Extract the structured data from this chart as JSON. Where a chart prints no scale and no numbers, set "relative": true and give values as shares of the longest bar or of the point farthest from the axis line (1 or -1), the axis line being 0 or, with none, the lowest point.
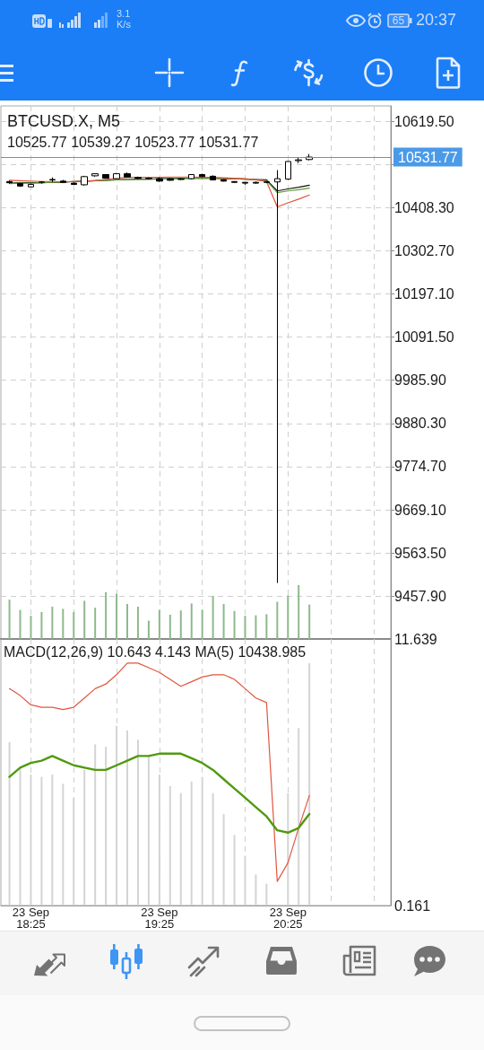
{
  "chart_data": [
    {
      "type": "candlestick",
      "title": "BTCUSD.X, M5",
      "subtitle": "10525.77 10539.27 10523.77 10531.77",
      "x": [
        "--09-23T18:15",
        "--09-23T18:20",
        "--09-23T18:25",
        "--09-23T18:30",
        "--09-23T18:35",
        "--09-23T18:40",
        "--09-23T18:45",
        "--09-23T18:50",
        "--09-23T18:55",
        "--09-23T19:00",
        "--09-23T19:05",
        "--09-23T19:10",
        "--09-23T19:15",
        "--09-23T19:20",
        "--09-23T19:25",
        "--09-23T19:30",
        "--09-23T19:35",
        "--09-23T19:40",
        "--09-23T19:45",
        "--09-23T19:50",
        "--09-23T19:55",
        "--09-23T20:00",
        "--09-23T20:05",
        "--09-23T20:10",
        "--09-23T20:15",
        "--09-23T20:20",
        "--09-23T20:25",
        "--09-23T20:30",
        "--09-23T20:35"
      ],
      "ohlc": [
        [
          10472,
          10474,
          10467,
          10469
        ],
        [
          10467,
          10468,
          10459,
          10461
        ],
        [
          10459,
          10467,
          10458,
          10465
        ],
        [
          10470,
          10473,
          10467,
          10471
        ],
        [
          10476,
          10482,
          10471,
          10477
        ],
        [
          10473,
          10476,
          10469,
          10470
        ],
        [
          10468,
          10470,
          10464,
          10465
        ],
        [
          10464,
          10486,
          10462,
          10484
        ],
        [
          10486,
          10492,
          10484,
          10491
        ],
        [
          10489,
          10490,
          10479,
          10480
        ],
        [
          10479,
          10493,
          10478,
          10491
        ],
        [
          10491,
          10494,
          10482,
          10483
        ],
        [
          10482,
          10484,
          10478,
          10480
        ],
        [
          10480,
          10482,
          10477,
          10479
        ],
        [
          10479,
          10482,
          10471,
          10473
        ],
        [
          10479,
          10481,
          10474,
          10475
        ],
        [
          10478,
          10480,
          10476,
          10477
        ],
        [
          10479,
          10490,
          10477,
          10489
        ],
        [
          10489,
          10491,
          10483,
          10484
        ],
        [
          10485,
          10487,
          10475,
          10476
        ],
        [
          10476,
          10477,
          10472,
          10473
        ],
        [
          10472,
          10473,
          10469,
          10470
        ],
        [
          10470,
          10471,
          10464,
          10468
        ],
        [
          10470,
          10472,
          10467,
          10468
        ],
        [
          10471,
          10473,
          10468,
          10470
        ],
        [
          10471,
          10500,
          9490,
          10479
        ],
        [
          10478,
          10522,
          10476,
          10521
        ],
        [
          10523,
          10532,
          10517,
          10525
        ],
        [
          10525.77,
          10539.27,
          10523.77,
          10531.77
        ]
      ],
      "color": "#000000",
      "series": [
        {
          "type": "line",
          "color": "#111111",
          "values": [
            10468,
            10469,
            10469,
            10469,
            10470,
            10470,
            10472,
            10473,
            10474,
            10475,
            10476,
            10477,
            10478,
            10478,
            10479,
            10479,
            10480,
            10480,
            10480,
            10480,
            10479,
            10479,
            10478,
            10477,
            10476,
            10449,
            10454,
            10458,
            10463
          ]
        },
        {
          "type": "line",
          "color": "#5f9e35",
          "values": [
            10467,
            10468,
            10468,
            10469,
            10470,
            10471,
            10472,
            10473,
            10474,
            10475,
            10476,
            10477,
            10477,
            10478,
            10478,
            10479,
            10479,
            10480,
            10480,
            10480,
            10480,
            10479,
            10478,
            10476,
            10474,
            10445,
            10449,
            10452,
            10456
          ]
        },
        {
          "type": "line",
          "color": "#e0533c",
          "values": [
            10475,
            10474,
            10473,
            10472,
            10472,
            10471,
            10472,
            10473,
            10474,
            10477,
            10480,
            10482,
            10482,
            10482,
            10482,
            10483,
            10483,
            10483,
            10482,
            10482,
            10481,
            10480,
            10479,
            10476,
            10472,
            10410,
            10420,
            10429,
            10439
          ]
        }
      ],
      "xlim": [
        "--09-23T18:11",
        "--09-23T21:13"
      ],
      "xticks": [
        {
          "value": "--09-23T18:25",
          "label": null
        },
        {
          "value": "--09-23T18:45",
          "label": null
        },
        {
          "value": "--09-23T19:05",
          "label": null
        },
        {
          "value": "--09-23T19:25",
          "label": null
        },
        {
          "value": "--09-23T19:45",
          "label": null
        },
        {
          "value": "--09-23T20:05",
          "label": null
        },
        {
          "value": "--09-23T20:25",
          "label": null
        },
        {
          "value": "--09-23T20:45",
          "label": null
        },
        {
          "value": "--09-23T21:05",
          "label": null
        }
      ],
      "ylim": [
        9353,
        10657
      ],
      "yticks": [
        {
          "value": 10619.5,
          "label": "10619.50"
        },
        {
          "value": 10513.9,
          "label": null
        },
        {
          "value": 10408.3,
          "label": "10408.30"
        },
        {
          "value": 10302.7,
          "label": "10302.70"
        },
        {
          "value": 10197.1,
          "label": "10197.10"
        },
        {
          "value": 10091.5,
          "label": "10091.50"
        },
        {
          "value": 9985.9,
          "label": "9985.90"
        },
        {
          "value": 9880.3,
          "label": "9880.30"
        },
        {
          "value": 9774.7,
          "label": "9774.70"
        },
        {
          "value": 9669.1,
          "label": "9669.10"
        },
        {
          "value": 9563.5,
          "label": "9563.50"
        },
        {
          "value": 9457.9,
          "label": "9457.90"
        }
      ],
      "ref_lines": [
        {
          "axis": "y",
          "value": 10531.77,
          "label": "10531.77",
          "color": "#4a9ae8"
        }
      ],
      "grid": true,
      "tick_labels": "y",
      "marker": "none",
      "annotations": [
        "3.1 K/s",
        "65",
        "20:37"
      ]
    },
    {
      "type": "bar",
      "relative": true,
      "x": [
        "--09-23T18:15",
        "--09-23T18:20",
        "--09-23T18:25",
        "--09-23T18:30",
        "--09-23T18:35",
        "--09-23T18:40",
        "--09-23T18:45",
        "--09-23T18:50",
        "--09-23T18:55",
        "--09-23T19:00",
        "--09-23T19:05",
        "--09-23T19:10",
        "--09-23T19:15",
        "--09-23T19:20",
        "--09-23T19:25",
        "--09-23T19:30",
        "--09-23T19:35",
        "--09-23T19:40",
        "--09-23T19:45",
        "--09-23T19:50",
        "--09-23T19:55",
        "--09-23T20:00",
        "--09-23T20:05",
        "--09-23T20:10",
        "--09-23T20:15",
        "--09-23T20:20",
        "--09-23T20:25",
        "--09-23T20:30",
        "--09-23T20:35"
      ],
      "values": [
        0.73,
        0.54,
        0.43,
        0.5,
        0.6,
        0.56,
        0.5,
        0.71,
        0.58,
        0.87,
        0.84,
        0.65,
        0.6,
        0.34,
        0.54,
        0.45,
        0.53,
        0.66,
        0.54,
        0.8,
        0.65,
        0.52,
        0.43,
        0.44,
        0.46,
        0.69,
        0.81,
        1,
        0.64
      ],
      "color": "#8db98d",
      "xlim": [
        "--09-23T18:11",
        "--09-23T21:13"
      ],
      "tick_labels": false
    },
    {
      "type": "bar",
      "title": "MACD(12,26,9) 10.643 4.143 MA(5) 10438.985",
      "x": [
        "--09-23T18:15",
        "--09-23T18:20",
        "--09-23T18:25",
        "--09-23T18:30",
        "--09-23T18:35",
        "--09-23T18:40",
        "--09-23T18:45",
        "--09-23T18:50",
        "--09-23T18:55",
        "--09-23T19:00",
        "--09-23T19:05",
        "--09-23T19:10",
        "--09-23T19:15",
        "--09-23T19:20",
        "--09-23T19:25",
        "--09-23T19:30",
        "--09-23T19:35",
        "--09-23T19:40",
        "--09-23T19:45",
        "--09-23T19:50",
        "--09-23T19:55",
        "--09-23T20:00",
        "--09-23T20:05",
        "--09-23T20:10",
        "--09-23T20:15",
        "--09-23T20:20",
        "--09-23T20:25",
        "--09-23T20:30",
        "--09-23T20:35"
      ],
      "series": [
        {
          "color": "#d4d4d4",
          "values": [
            7.2,
            6.1,
            5.8,
            5.7,
            5.8,
            5.4,
            4.8,
            6.0,
            7.1,
            7.0,
            7.9,
            7.7,
            7.3,
            6.6,
            5.8,
            5.3,
            5.0,
            5.5,
            5.7,
            5.0,
            4.1,
            3.2,
            2.3,
            1.5,
            1.1,
            null,
            5.0,
            7.8,
            10.6
          ]
        },
        {
          "type": "line",
          "color": "#e0573f",
          "values": [
            9.5,
            9.2,
            8.8,
            8.7,
            8.7,
            8.6,
            8.7,
            9.1,
            9.5,
            9.7,
            10.1,
            10.6,
            10.6,
            10.4,
            10.2,
            9.9,
            9.6,
            9.8,
            10.0,
            10.1,
            10.1,
            9.9,
            9.5,
            9.1,
            8.9,
            1.2,
            2.0,
            3.5,
            4.9
          ]
        },
        {
          "type": "line",
          "color": "#4f9a0e",
          "values": [
            5.7,
            6.1,
            6.3,
            6.4,
            6.6,
            6.4,
            6.2,
            6.1,
            6.0,
            6.0,
            6.2,
            6.4,
            6.6,
            6.6,
            6.7,
            6.7,
            6.7,
            6.5,
            6.3,
            6.0,
            5.6,
            5.2,
            4.8,
            4.4,
            4.0,
            3.4,
            3.3,
            3.5,
            4.1
          ]
        }
      ],
      "xlim": [
        "--09-23T18:11",
        "--09-23T21:13"
      ],
      "xticks": [
        {
          "value": "--09-23T18:25",
          "label": "23 Sep 18:25"
        },
        {
          "value": "--09-23T18:45",
          "label": null
        },
        {
          "value": "--09-23T19:05",
          "label": null
        },
        {
          "value": "--09-23T19:25",
          "label": "23 Sep 19:25"
        },
        {
          "value": "--09-23T19:45",
          "label": null
        },
        {
          "value": "--09-23T20:05",
          "label": null
        },
        {
          "value": "--09-23T20:25",
          "label": "23 Sep 20:25"
        },
        {
          "value": "--09-23T20:45",
          "label": null
        },
        {
          "value": "--09-23T21:05",
          "label": null
        }
      ],
      "ylim": [
        0.161,
        11.639
      ],
      "yticks": [
        0.161,
        11.639
      ],
      "grid": "x",
      "marker": "none"
    }
  ]
}
